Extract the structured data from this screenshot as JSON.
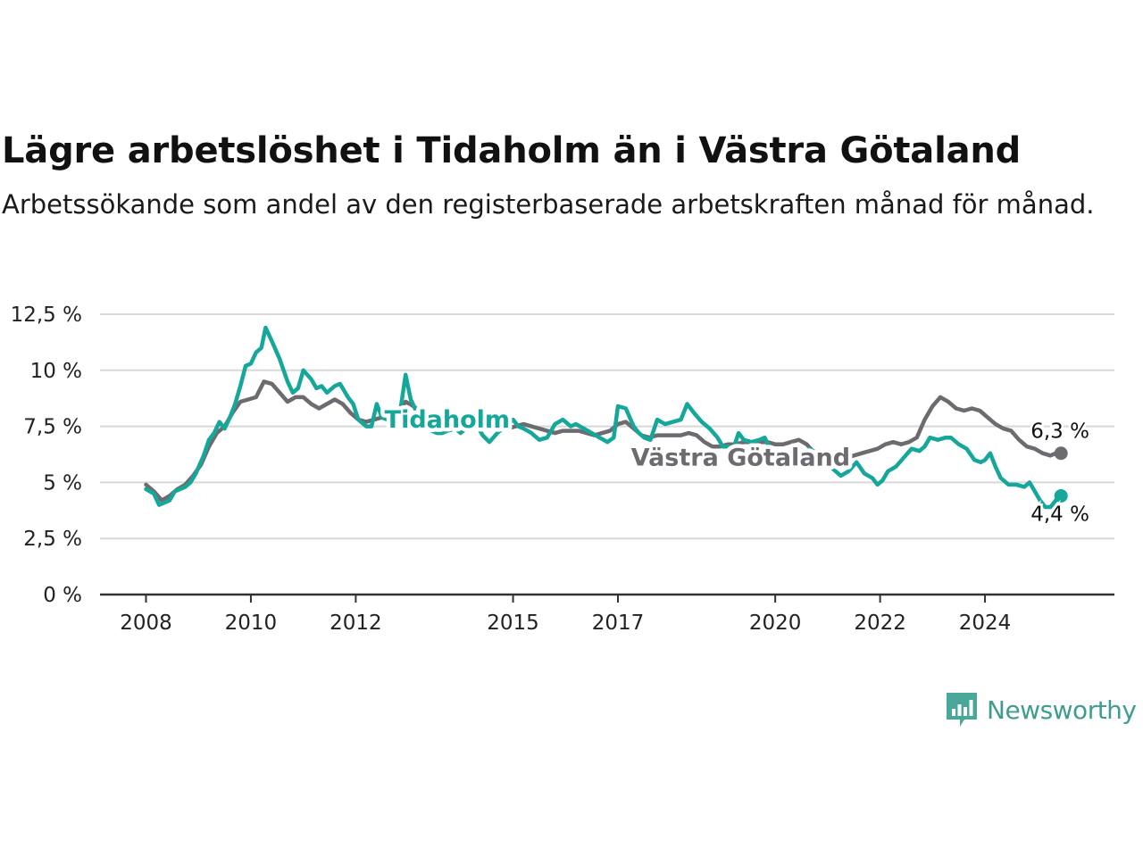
{
  "title": "Lägre arbetslöshet i Tidaholm än i Västra Götaland",
  "subtitle": "Arbetssökande som andel av den registerbaserade arbetskraften månad för månad.",
  "logo": {
    "text": "Newsworthy",
    "icon": "newsworthy-chart-icon"
  },
  "colors": {
    "Tidaholm": "#14a79a",
    "Västra Götaland": "#6d6a70",
    "grid": "#d8d8d8",
    "axis": "#333333"
  },
  "chart_data": {
    "type": "line",
    "title": "Lägre arbetslöshet i Tidaholm än i Västra Götaland",
    "subtitle": "Arbetssökande som andel av den registerbaserade arbetskraften månad för månad.",
    "xlabel": "",
    "ylabel": "",
    "ylim": [
      0,
      12.5
    ],
    "yticks": [
      0,
      2.5,
      5,
      7.5,
      10,
      12.5
    ],
    "ytick_labels": [
      "0 %",
      "2,5 %",
      "5 %",
      "7,5 %",
      "10 %",
      "12,5 %"
    ],
    "xlim": [
      2008,
      2025.6
    ],
    "xticks": [
      2008,
      2010,
      2012,
      2015,
      2017,
      2020,
      2022,
      2024
    ],
    "xtick_labels": [
      "2008",
      "2010",
      "2012",
      "2015",
      "2017",
      "2020",
      "2022",
      "2024"
    ],
    "grid": true,
    "legend": "inline labels",
    "end_labels": [
      {
        "series": "Västra Götaland",
        "text": "6,3 %"
      },
      {
        "series": "Tidaholm",
        "text": "4,4 %"
      }
    ],
    "series": [
      {
        "name": "Tidaholm",
        "points": [
          [
            2008.0,
            4.7
          ],
          [
            2008.15,
            4.5
          ],
          [
            2008.25,
            4.0
          ],
          [
            2008.45,
            4.2
          ],
          [
            2008.55,
            4.6
          ],
          [
            2008.75,
            4.8
          ],
          [
            2008.85,
            5.0
          ],
          [
            2008.95,
            5.4
          ],
          [
            2009.1,
            6.2
          ],
          [
            2009.2,
            6.9
          ],
          [
            2009.3,
            7.2
          ],
          [
            2009.4,
            7.7
          ],
          [
            2009.5,
            7.4
          ],
          [
            2009.6,
            7.9
          ],
          [
            2009.7,
            8.5
          ],
          [
            2009.8,
            9.3
          ],
          [
            2009.9,
            10.2
          ],
          [
            2010.0,
            10.3
          ],
          [
            2010.1,
            10.8
          ],
          [
            2010.2,
            11.0
          ],
          [
            2010.28,
            11.9
          ],
          [
            2010.4,
            11.3
          ],
          [
            2010.55,
            10.5
          ],
          [
            2010.7,
            9.5
          ],
          [
            2010.8,
            9.0
          ],
          [
            2010.9,
            9.2
          ],
          [
            2011.0,
            10.0
          ],
          [
            2011.15,
            9.6
          ],
          [
            2011.25,
            9.2
          ],
          [
            2011.35,
            9.3
          ],
          [
            2011.45,
            9.0
          ],
          [
            2011.6,
            9.3
          ],
          [
            2011.7,
            9.4
          ],
          [
            2011.85,
            8.8
          ],
          [
            2011.95,
            8.5
          ],
          [
            2012.05,
            7.8
          ],
          [
            2012.2,
            7.5
          ],
          [
            2012.3,
            7.5
          ],
          [
            2012.4,
            8.5
          ],
          [
            2012.5,
            7.9
          ],
          [
            2012.6,
            7.8
          ],
          [
            2012.72,
            8.0
          ],
          [
            2012.85,
            8.2
          ],
          [
            2012.95,
            9.8
          ],
          [
            2013.05,
            8.7
          ],
          [
            2013.15,
            8.2
          ],
          [
            2013.25,
            7.9
          ],
          [
            2013.35,
            7.5
          ],
          [
            2013.45,
            7.3
          ],
          [
            2013.55,
            7.2
          ],
          [
            2013.65,
            7.2
          ],
          [
            2013.75,
            7.3
          ],
          [
            2013.9,
            7.4
          ],
          [
            2014.0,
            7.2
          ],
          [
            2014.15,
            7.5
          ],
          [
            2014.3,
            7.6
          ],
          [
            2014.42,
            7.1
          ],
          [
            2014.55,
            6.8
          ],
          [
            2014.7,
            7.2
          ],
          [
            2014.85,
            7.5
          ],
          [
            2015.0,
            7.8
          ],
          [
            2015.1,
            7.5
          ],
          [
            2015.2,
            7.4
          ],
          [
            2015.35,
            7.2
          ],
          [
            2015.5,
            6.9
          ],
          [
            2015.65,
            7.0
          ],
          [
            2015.8,
            7.6
          ],
          [
            2015.95,
            7.8
          ],
          [
            2016.1,
            7.5
          ],
          [
            2016.2,
            7.6
          ],
          [
            2016.35,
            7.4
          ],
          [
            2016.5,
            7.2
          ],
          [
            2016.65,
            7.0
          ],
          [
            2016.8,
            6.8
          ],
          [
            2016.92,
            7.0
          ],
          [
            2017.0,
            8.4
          ],
          [
            2017.15,
            8.3
          ],
          [
            2017.3,
            7.5
          ],
          [
            2017.4,
            7.2
          ],
          [
            2017.5,
            7.0
          ],
          [
            2017.62,
            6.9
          ],
          [
            2017.75,
            7.8
          ],
          [
            2017.9,
            7.6
          ],
          [
            2018.05,
            7.7
          ],
          [
            2018.2,
            7.8
          ],
          [
            2018.32,
            8.5
          ],
          [
            2018.45,
            8.1
          ],
          [
            2018.6,
            7.7
          ],
          [
            2018.75,
            7.4
          ],
          [
            2018.9,
            7.0
          ],
          [
            2019.0,
            6.6
          ],
          [
            2019.1,
            6.6
          ],
          [
            2019.2,
            6.5
          ],
          [
            2019.3,
            7.2
          ],
          [
            2019.4,
            6.9
          ],
          [
            2019.55,
            6.8
          ],
          [
            2019.7,
            6.9
          ],
          [
            2019.8,
            7.0
          ],
          [
            2019.9,
            6.5
          ],
          [
            2020.05,
            6.2
          ],
          [
            2020.2,
            5.8
          ],
          [
            2020.35,
            6.0
          ],
          [
            2020.5,
            6.2
          ],
          [
            2020.65,
            6.5
          ],
          [
            2020.8,
            6.3
          ],
          [
            2020.95,
            6.0
          ],
          [
            2021.1,
            5.6
          ],
          [
            2021.25,
            5.3
          ],
          [
            2021.4,
            5.5
          ],
          [
            2021.55,
            5.9
          ],
          [
            2021.7,
            5.4
          ],
          [
            2021.85,
            5.2
          ],
          [
            2021.95,
            4.9
          ],
          [
            2022.05,
            5.1
          ],
          [
            2022.15,
            5.5
          ],
          [
            2022.3,
            5.7
          ],
          [
            2022.45,
            6.1
          ],
          [
            2022.6,
            6.5
          ],
          [
            2022.75,
            6.4
          ],
          [
            2022.85,
            6.6
          ],
          [
            2022.95,
            7.0
          ],
          [
            2023.1,
            6.9
          ],
          [
            2023.25,
            7.0
          ],
          [
            2023.35,
            7.0
          ],
          [
            2023.5,
            6.7
          ],
          [
            2023.65,
            6.5
          ],
          [
            2023.8,
            6.0
          ],
          [
            2023.92,
            5.9
          ],
          [
            2024.0,
            6.0
          ],
          [
            2024.1,
            6.3
          ],
          [
            2024.2,
            5.7
          ],
          [
            2024.3,
            5.2
          ],
          [
            2024.45,
            4.9
          ],
          [
            2024.6,
            4.9
          ],
          [
            2024.75,
            4.8
          ],
          [
            2024.85,
            5.0
          ],
          [
            2024.95,
            4.6
          ],
          [
            2025.05,
            4.2
          ],
          [
            2025.15,
            3.9
          ],
          [
            2025.25,
            3.9
          ],
          [
            2025.35,
            4.2
          ],
          [
            2025.45,
            4.4
          ]
        ]
      },
      {
        "name": "Västra Götaland",
        "points": [
          [
            2008.0,
            4.9
          ],
          [
            2008.15,
            4.6
          ],
          [
            2008.3,
            4.2
          ],
          [
            2008.45,
            4.4
          ],
          [
            2008.6,
            4.7
          ],
          [
            2008.75,
            4.9
          ],
          [
            2008.9,
            5.3
          ],
          [
            2009.05,
            5.8
          ],
          [
            2009.2,
            6.6
          ],
          [
            2009.35,
            7.2
          ],
          [
            2009.5,
            7.5
          ],
          [
            2009.65,
            8.1
          ],
          [
            2009.8,
            8.6
          ],
          [
            2009.95,
            8.7
          ],
          [
            2010.1,
            8.8
          ],
          [
            2010.25,
            9.5
          ],
          [
            2010.4,
            9.4
          ],
          [
            2010.55,
            9.0
          ],
          [
            2010.7,
            8.6
          ],
          [
            2010.85,
            8.8
          ],
          [
            2011.0,
            8.8
          ],
          [
            2011.15,
            8.5
          ],
          [
            2011.3,
            8.3
          ],
          [
            2011.45,
            8.5
          ],
          [
            2011.6,
            8.7
          ],
          [
            2011.75,
            8.5
          ],
          [
            2011.9,
            8.1
          ],
          [
            2012.05,
            7.8
          ],
          [
            2012.2,
            7.7
          ],
          [
            2012.35,
            7.8
          ],
          [
            2012.5,
            7.9
          ],
          [
            2012.65,
            8.0
          ],
          [
            2012.8,
            8.1
          ],
          [
            2012.95,
            8.6
          ],
          [
            2013.1,
            8.4
          ],
          [
            2013.25,
            8.1
          ],
          [
            2013.4,
            7.8
          ],
          [
            2013.55,
            7.8
          ],
          [
            2013.7,
            7.9
          ],
          [
            2013.85,
            7.8
          ],
          [
            2014.0,
            7.7
          ],
          [
            2014.15,
            7.6
          ],
          [
            2014.3,
            7.6
          ],
          [
            2014.45,
            7.5
          ],
          [
            2014.6,
            7.4
          ],
          [
            2014.75,
            7.4
          ],
          [
            2014.9,
            7.4
          ],
          [
            2015.05,
            7.5
          ],
          [
            2015.2,
            7.6
          ],
          [
            2015.35,
            7.5
          ],
          [
            2015.5,
            7.4
          ],
          [
            2015.65,
            7.3
          ],
          [
            2015.8,
            7.2
          ],
          [
            2015.95,
            7.3
          ],
          [
            2016.1,
            7.3
          ],
          [
            2016.25,
            7.3
          ],
          [
            2016.4,
            7.2
          ],
          [
            2016.55,
            7.1
          ],
          [
            2016.7,
            7.2
          ],
          [
            2016.85,
            7.3
          ],
          [
            2017.0,
            7.6
          ],
          [
            2017.15,
            7.7
          ],
          [
            2017.3,
            7.4
          ],
          [
            2017.45,
            7.1
          ],
          [
            2017.6,
            7.0
          ],
          [
            2017.75,
            7.1
          ],
          [
            2017.9,
            7.1
          ],
          [
            2018.05,
            7.1
          ],
          [
            2018.2,
            7.1
          ],
          [
            2018.35,
            7.2
          ],
          [
            2018.5,
            7.1
          ],
          [
            2018.65,
            6.8
          ],
          [
            2018.8,
            6.6
          ],
          [
            2018.95,
            6.6
          ],
          [
            2019.1,
            6.7
          ],
          [
            2019.25,
            6.7
          ],
          [
            2019.4,
            6.8
          ],
          [
            2019.55,
            6.8
          ],
          [
            2019.7,
            6.8
          ],
          [
            2019.85,
            6.8
          ],
          [
            2020.0,
            6.7
          ],
          [
            2020.15,
            6.7
          ],
          [
            2020.3,
            6.8
          ],
          [
            2020.45,
            6.9
          ],
          [
            2020.6,
            6.7
          ],
          [
            2020.75,
            6.3
          ],
          [
            2020.9,
            6.3
          ],
          [
            2021.05,
            6.2
          ],
          [
            2021.2,
            6.2
          ],
          [
            2021.35,
            6.1
          ],
          [
            2021.5,
            6.2
          ],
          [
            2021.65,
            6.3
          ],
          [
            2021.8,
            6.4
          ],
          [
            2021.95,
            6.5
          ],
          [
            2022.1,
            6.7
          ],
          [
            2022.25,
            6.8
          ],
          [
            2022.4,
            6.7
          ],
          [
            2022.55,
            6.8
          ],
          [
            2022.7,
            7.0
          ],
          [
            2022.85,
            7.8
          ],
          [
            2023.0,
            8.4
          ],
          [
            2023.15,
            8.8
          ],
          [
            2023.3,
            8.6
          ],
          [
            2023.45,
            8.3
          ],
          [
            2023.6,
            8.2
          ],
          [
            2023.75,
            8.3
          ],
          [
            2023.9,
            8.2
          ],
          [
            2024.05,
            7.9
          ],
          [
            2024.2,
            7.6
          ],
          [
            2024.35,
            7.4
          ],
          [
            2024.5,
            7.3
          ],
          [
            2024.65,
            6.9
          ],
          [
            2024.8,
            6.6
          ],
          [
            2024.95,
            6.5
          ],
          [
            2025.1,
            6.3
          ],
          [
            2025.25,
            6.2
          ],
          [
            2025.35,
            6.3
          ],
          [
            2025.45,
            6.3
          ]
        ]
      }
    ]
  }
}
